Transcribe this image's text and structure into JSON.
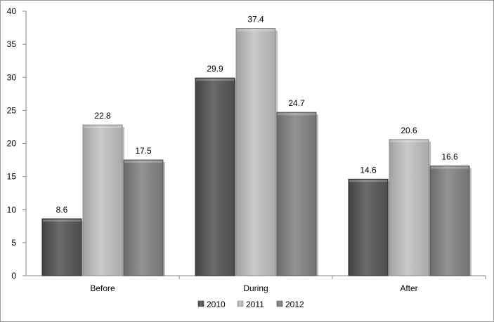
{
  "chart_data": {
    "type": "bar",
    "title": "",
    "xlabel": "",
    "ylabel": "",
    "categories": [
      "Before",
      "During",
      "After"
    ],
    "ylim": [
      0,
      40
    ],
    "yticks": [
      0,
      5,
      10,
      15,
      20,
      25,
      30,
      35,
      40
    ],
    "grid": false,
    "legend_position": "bottom",
    "series": [
      {
        "name": "2010",
        "values": [
          8.6,
          29.9,
          14.6
        ],
        "color": "#555555"
      },
      {
        "name": "2011",
        "values": [
          22.8,
          37.4,
          20.6
        ],
        "color": "#b4b4b4"
      },
      {
        "name": "2012",
        "values": [
          17.5,
          24.7,
          16.6
        ],
        "color": "#7d7d7d"
      }
    ],
    "data_labels": true
  }
}
